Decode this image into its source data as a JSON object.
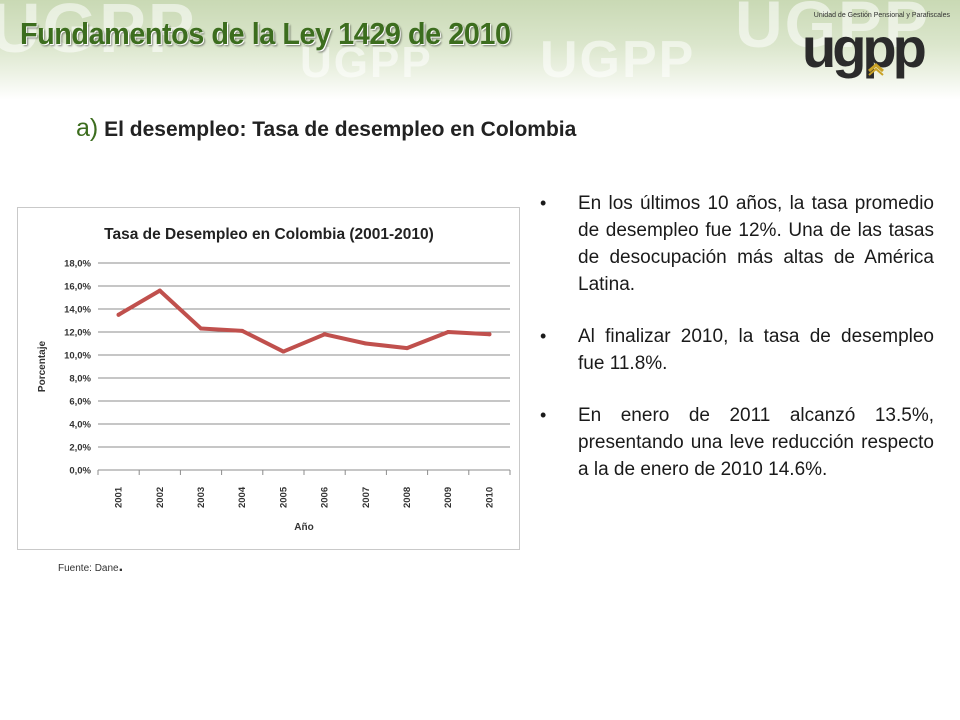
{
  "header": {
    "title": "Fundamentos de la Ley 1429 de 2010",
    "watermark": "UGPP"
  },
  "logo": {
    "caption": "Unidad de Gestión Pensional y Parafiscales",
    "word": "ugpp",
    "accent_color": "#c9a227"
  },
  "subtitle": {
    "letter": "a)",
    "text": "El  desempleo: Tasa de desempleo en Colombia"
  },
  "chart_data": {
    "type": "line",
    "title": "Tasa de Desempleo en Colombia  (2001-2010)",
    "xlabel": "Año",
    "ylabel": "Porcentaje",
    "categories": [
      "2001",
      "2002",
      "2003",
      "2004",
      "2005",
      "2006",
      "2007",
      "2008",
      "2009",
      "2010"
    ],
    "series": [
      {
        "values": [
          13.5,
          15.6,
          12.3,
          12.1,
          10.3,
          11.8,
          11.0,
          10.6,
          12.0,
          11.8
        ],
        "color": "#c0504d"
      }
    ],
    "ylim": [
      0,
      18
    ],
    "yticks": [
      "0,0%",
      "2,0%",
      "4,0%",
      "6,0%",
      "8,0%",
      "10,0%",
      "12,0%",
      "14,0%",
      "16,0%",
      "18,0%"
    ],
    "grid": true,
    "legend": "none"
  },
  "source": "Fuente: Dane",
  "bullets": [
    "En los últimos 10 años, la tasa promedio  de desempleo fue 12%. Una de las tasas de desocupación más altas de América Latina.",
    "Al finalizar 2010, la tasa de desempleo fue 11.8%.",
    "En enero de 2011 alcanzó 13.5%, presentando una leve reducción respecto a la de enero de 2010 14.6%."
  ],
  "bullet_symbol": "•",
  "colors": {
    "title_green": "#3c6d1e",
    "line_red": "#c0504d"
  }
}
